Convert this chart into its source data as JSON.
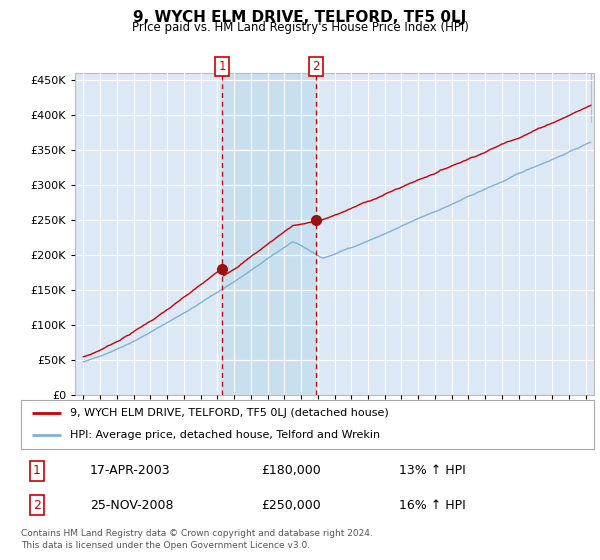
{
  "title": "9, WYCH ELM DRIVE, TELFORD, TF5 0LJ",
  "subtitle": "Price paid vs. HM Land Registry's House Price Index (HPI)",
  "red_label": "9, WYCH ELM DRIVE, TELFORD, TF5 0LJ (detached house)",
  "blue_label": "HPI: Average price, detached house, Telford and Wrekin",
  "transaction1_date": "17-APR-2003",
  "transaction1_price": "£180,000",
  "transaction1_hpi": "13% ↑ HPI",
  "transaction1_year": 2003.29,
  "transaction1_value": 180000,
  "transaction2_date": "25-NOV-2008",
  "transaction2_price": "£250,000",
  "transaction2_hpi": "16% ↑ HPI",
  "transaction2_year": 2008.9,
  "transaction2_value": 250000,
  "footer": "Contains HM Land Registry data © Crown copyright and database right 2024.\nThis data is licensed under the Open Government Licence v3.0.",
  "background_color": "#ffffff",
  "plot_bg_color": "#dce8f5",
  "shaded_color": "#c8dff0",
  "grid_color": "#ffffff",
  "red_color": "#cc0000",
  "blue_color": "#7fb3d3",
  "vline_color": "#cc0000",
  "ylim_min": 0,
  "ylim_max": 460000,
  "ytick_step": 50000,
  "xmin": 1994.5,
  "xmax": 2025.5
}
